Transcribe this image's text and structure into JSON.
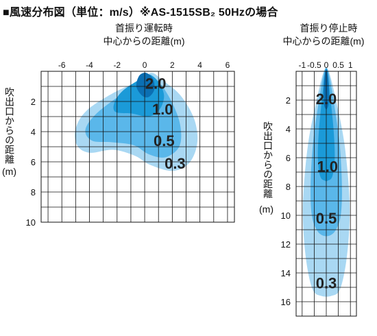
{
  "title": "■風速分布図（単位：m/s）※AS-1515SB₂ 50Hzの場合",
  "colors": {
    "grid": "#111111",
    "zone_0_3": "#a9d8f3",
    "zone_0_5": "#5ab7ea",
    "zone_1_0": "#1b9ad8",
    "zone_2_0": "#0b6fb3",
    "label": "#222222"
  },
  "chart_data": [
    {
      "type": "area",
      "caption_line1": "首振り運転時",
      "caption_line2": "中心からの距離(m)",
      "ylabel": "吹出口からの距離",
      "yunit": "(m)",
      "x_ticks": [
        "-6",
        "-4",
        "-2",
        "0",
        "2",
        "4",
        "6"
      ],
      "y_ticks": [
        "2",
        "4",
        "6",
        "8",
        "10"
      ],
      "xlim": [
        -7.5,
        6.5
      ],
      "ylim": [
        0,
        10
      ],
      "x_grid_step": 1,
      "y_grid_step": 1,
      "zones": [
        {
          "label": "0.3",
          "value": 0.3,
          "points": [
            [
              -0.3,
              0.6
            ],
            [
              -2.2,
              1.4
            ],
            [
              -4.2,
              2.6
            ],
            [
              -5.0,
              3.8
            ],
            [
              -4.9,
              4.9
            ],
            [
              -4.0,
              5.4
            ],
            [
              -2.3,
              5.2
            ],
            [
              -0.7,
              5.6
            ],
            [
              0.4,
              6.2
            ],
            [
              2.0,
              6.6
            ],
            [
              3.2,
              6.1
            ],
            [
              3.8,
              4.8
            ],
            [
              3.6,
              3.2
            ],
            [
              2.6,
              1.6
            ],
            [
              1.3,
              0.6
            ],
            [
              0.5,
              0.1
            ]
          ]
        },
        {
          "label": "0.5",
          "value": 0.5,
          "points": [
            [
              -0.3,
              0.7
            ],
            [
              -2.1,
              1.8
            ],
            [
              -3.6,
              2.9
            ],
            [
              -4.3,
              3.9
            ],
            [
              -3.8,
              4.6
            ],
            [
              -2.4,
              4.7
            ],
            [
              -0.8,
              4.9
            ],
            [
              0.3,
              5.5
            ],
            [
              1.5,
              5.7
            ],
            [
              2.5,
              5.0
            ],
            [
              2.6,
              3.7
            ],
            [
              2.1,
              2.3
            ],
            [
              1.2,
              0.9
            ],
            [
              0.3,
              0.3
            ]
          ]
        },
        {
          "label": "1.0",
          "value": 1.0,
          "points": [
            [
              -0.3,
              0.5
            ],
            [
              -1.6,
              1.3
            ],
            [
              -2.2,
              2.1
            ],
            [
              -2.1,
              2.7
            ],
            [
              -0.9,
              2.8
            ],
            [
              0.3,
              3.0
            ],
            [
              1.1,
              2.5
            ],
            [
              1.4,
              1.6
            ],
            [
              1.0,
              0.7
            ],
            [
              0.3,
              0.2
            ]
          ]
        },
        {
          "label": "2.0",
          "value": 2.0,
          "points": [
            [
              -0.4,
              0.3
            ],
            [
              -0.6,
              1.0
            ],
            [
              -0.2,
              1.6
            ],
            [
              0.3,
              1.7
            ],
            [
              0.7,
              1.2
            ],
            [
              0.6,
              0.5
            ],
            [
              0.1,
              0.1
            ]
          ]
        }
      ],
      "annotations": [
        {
          "text": "2.0",
          "x": 0.8,
          "y": 0.8
        },
        {
          "text": "1.0",
          "x": 1.3,
          "y": 2.5
        },
        {
          "text": "0.5",
          "x": 1.4,
          "y": 4.6
        },
        {
          "text": "0.3",
          "x": 2.2,
          "y": 6.1
        }
      ]
    },
    {
      "type": "area",
      "caption_line1": "首振り停止時",
      "caption_line2": "中心からの距離(m)",
      "ylabel": "吹出口からの距離",
      "yunit": "(m)",
      "x_ticks": [
        "-1",
        "-0.5",
        "0",
        "0.5",
        "1"
      ],
      "y_ticks": [
        "2",
        "4",
        "6",
        "8",
        "10",
        "12",
        "14",
        "16"
      ],
      "xlim": [
        -1.25,
        1.25
      ],
      "ylim": [
        0,
        17
      ],
      "x_grid_step": 0.5,
      "y_grid_step": 1,
      "zones": [
        {
          "label": "0.3",
          "value": 0.3,
          "points": [
            [
              -0.1,
              0.0
            ],
            [
              -0.4,
              2.0
            ],
            [
              -0.75,
              5.0
            ],
            [
              -0.95,
              8.5
            ],
            [
              -0.95,
              11.0
            ],
            [
              -0.8,
              13.5
            ],
            [
              -0.55,
              15.2
            ],
            [
              -0.2,
              15.6
            ],
            [
              0.2,
              15.6
            ],
            [
              0.55,
              15.2
            ],
            [
              0.8,
              13.5
            ],
            [
              0.95,
              11.0
            ],
            [
              0.95,
              8.5
            ],
            [
              0.75,
              5.0
            ],
            [
              0.4,
              2.0
            ],
            [
              0.1,
              0.0
            ]
          ]
        },
        {
          "label": "0.5",
          "value": 0.5,
          "points": [
            [
              -0.08,
              0.0
            ],
            [
              -0.3,
              2.0
            ],
            [
              -0.55,
              5.0
            ],
            [
              -0.65,
              8.0
            ],
            [
              -0.6,
              10.0
            ],
            [
              -0.4,
              11.0
            ],
            [
              -0.15,
              11.4
            ],
            [
              0.15,
              11.4
            ],
            [
              0.4,
              11.0
            ],
            [
              0.6,
              10.0
            ],
            [
              0.65,
              8.0
            ],
            [
              0.55,
              5.0
            ],
            [
              0.3,
              2.0
            ],
            [
              0.08,
              0.0
            ]
          ]
        },
        {
          "label": "1.0",
          "value": 1.0,
          "points": [
            [
              -0.05,
              0.0
            ],
            [
              -0.15,
              1.5
            ],
            [
              -0.3,
              4.0
            ],
            [
              -0.35,
              6.0
            ],
            [
              -0.25,
              7.3
            ],
            [
              -0.05,
              7.6
            ],
            [
              0.05,
              7.6
            ],
            [
              0.25,
              7.3
            ],
            [
              0.35,
              6.0
            ],
            [
              0.3,
              4.0
            ],
            [
              0.15,
              1.5
            ],
            [
              0.05,
              0.0
            ]
          ]
        },
        {
          "label": "2.0",
          "value": 2.0,
          "points": [
            [
              -0.04,
              0.0
            ],
            [
              -0.1,
              1.0
            ],
            [
              -0.1,
              2.2
            ],
            [
              -0.03,
              2.6
            ],
            [
              0.03,
              2.6
            ],
            [
              0.1,
              2.2
            ],
            [
              0.1,
              1.0
            ],
            [
              0.04,
              0.0
            ]
          ]
        }
      ],
      "annotations": [
        {
          "text": "2.0",
          "x": 0.0,
          "y": 1.9
        },
        {
          "text": "1.0",
          "x": 0.05,
          "y": 6.6
        },
        {
          "text": "0.5",
          "x": 0.0,
          "y": 10.2
        },
        {
          "text": "0.3",
          "x": 0.0,
          "y": 14.7
        }
      ]
    }
  ]
}
